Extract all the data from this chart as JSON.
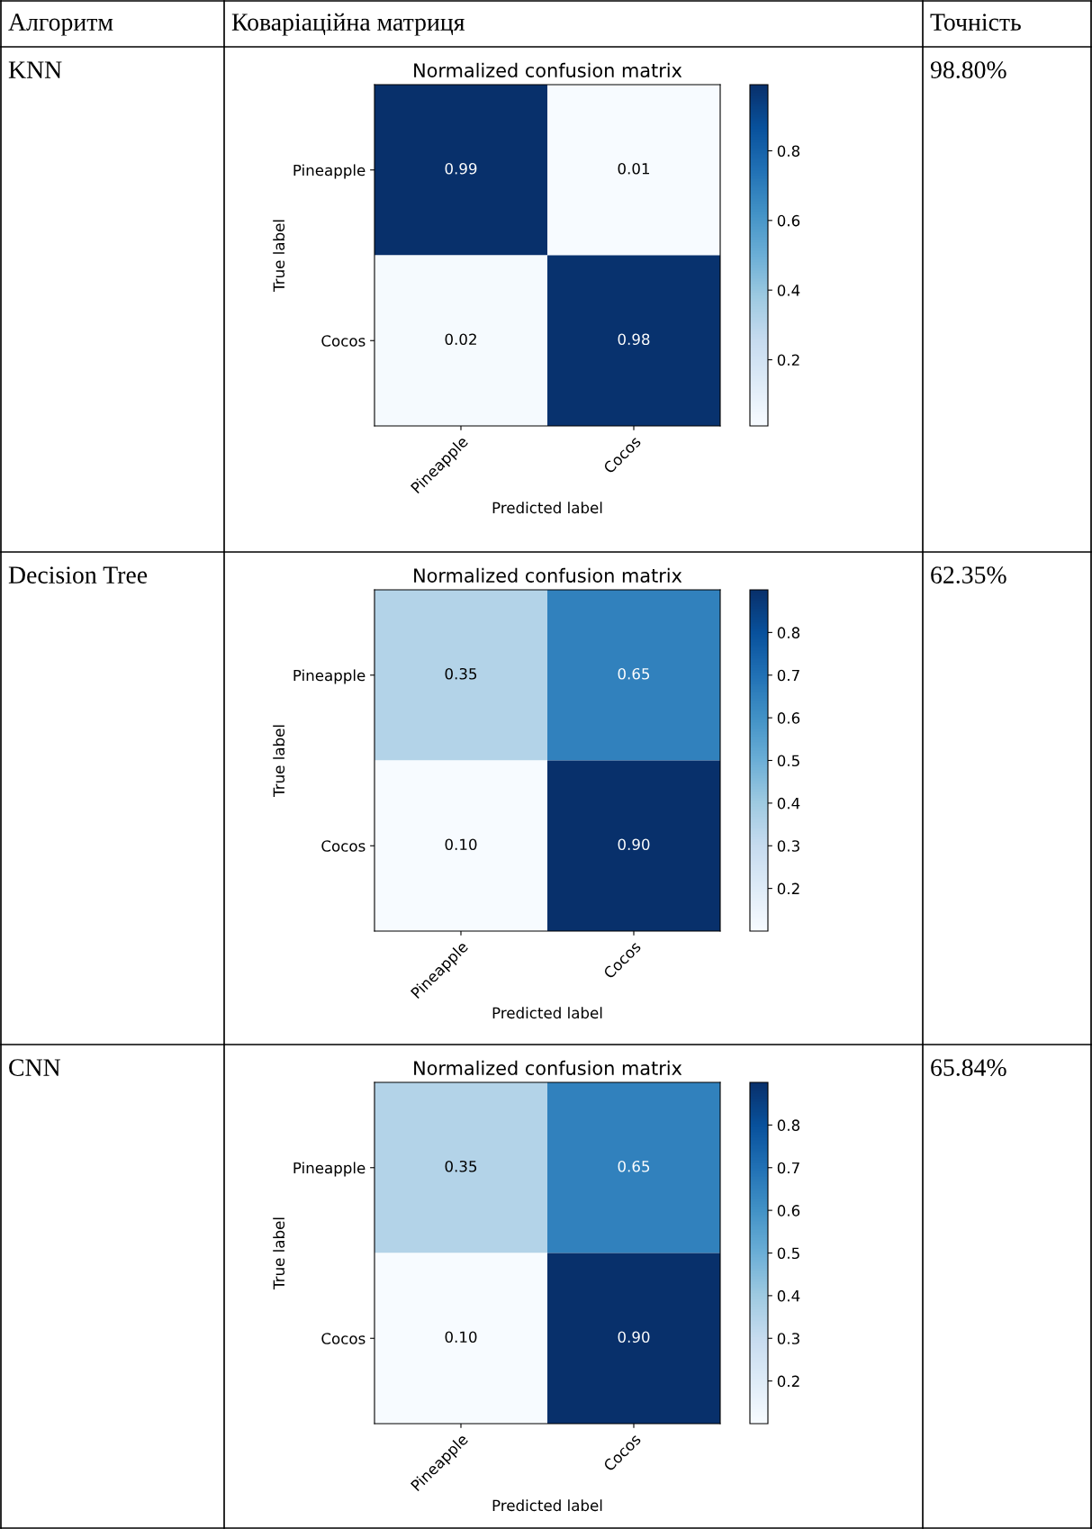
{
  "chart_data": [
    {
      "type": "other",
      "annotations": [
        "Алгоритм",
        "Коваріаційна матриця",
        "Точність"
      ]
    },
    {
      "type": "heatmap",
      "title": "Normalized confusion matrix",
      "xlabel": "Predicted label",
      "ylabel": "True label",
      "categories": [
        "Pineapple",
        "Cocos"
      ],
      "y_categories": [
        "Pineapple",
        "Cocos"
      ],
      "cells": [
        [
          0.99,
          0.01
        ],
        [
          0.02,
          0.98
        ]
      ],
      "cell_labels": [
        [
          "0.99",
          "0.01"
        ],
        [
          "0.02",
          "0.98"
        ]
      ],
      "clim": [
        0.01,
        0.99
      ],
      "cticks": [
        0.2,
        0.4,
        0.6,
        0.8
      ],
      "annotations": [
        "KNN",
        "98.80%"
      ]
    },
    {
      "type": "heatmap",
      "title": "Normalized confusion matrix",
      "xlabel": "Predicted label",
      "ylabel": "True label",
      "categories": [
        "Pineapple",
        "Cocos"
      ],
      "y_categories": [
        "Pineapple",
        "Cocos"
      ],
      "cells": [
        [
          0.35,
          0.65
        ],
        [
          0.1,
          0.9
        ]
      ],
      "cell_labels": [
        [
          "0.35",
          "0.65"
        ],
        [
          "0.10",
          "0.90"
        ]
      ],
      "clim": [
        0.1,
        0.9
      ],
      "cticks": [
        0.2,
        0.3,
        0.4,
        0.5,
        0.6,
        0.7,
        0.8
      ],
      "annotations": [
        "Decision Tree",
        "62.35%"
      ]
    },
    {
      "type": "heatmap",
      "title": "Normalized confusion matrix",
      "xlabel": "Predicted label",
      "ylabel": "True label",
      "categories": [
        "Pineapple",
        "Cocos"
      ],
      "y_categories": [
        "Pineapple",
        "Cocos"
      ],
      "cells": [
        [
          0.35,
          0.65
        ],
        [
          0.1,
          0.9
        ]
      ],
      "cell_labels": [
        [
          "0.35",
          "0.65"
        ],
        [
          "0.10",
          "0.90"
        ]
      ],
      "clim": [
        0.1,
        0.9
      ],
      "cticks": [
        0.2,
        0.3,
        0.4,
        0.5,
        0.6,
        0.7,
        0.8
      ],
      "annotations": [
        "CNN",
        "65.84%"
      ]
    }
  ]
}
